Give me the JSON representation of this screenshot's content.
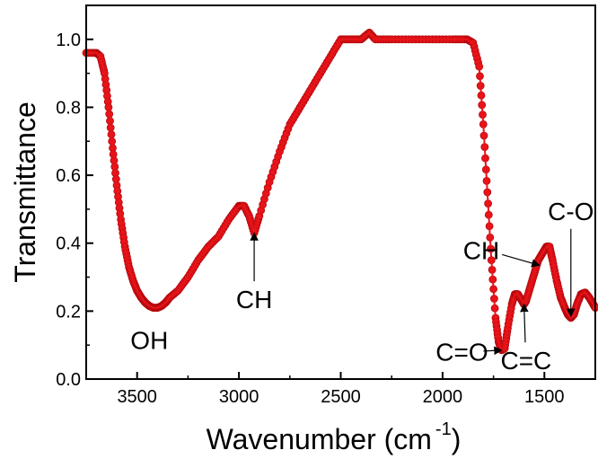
{
  "chart_data": {
    "type": "scatter",
    "xlabel": "Wavenumber (cm",
    "xlabel_superscript": "-1",
    "xlabel_suffix": ")",
    "ylabel": "Transmittance",
    "xlim": [
      3750,
      1250
    ],
    "ylim": [
      0.0,
      1.1
    ],
    "x_reversed": true,
    "x_ticks": [
      3500,
      3000,
      2500,
      2000,
      1500
    ],
    "y_ticks": [
      0.0,
      0.2,
      0.4,
      0.6,
      0.8,
      1.0
    ],
    "x_tick_labels": [
      "3500",
      "3000",
      "2500",
      "2000",
      "1500"
    ],
    "y_tick_labels": [
      "0.0",
      "0.2",
      "0.4",
      "0.6",
      "0.8",
      "1.0"
    ],
    "grid": false,
    "legend": "none",
    "series": [
      {
        "color": "#e8141a",
        "marker": "circle",
        "points": [
          [
            3750,
            0.96
          ],
          [
            3700,
            0.96
          ],
          [
            3680,
            0.95
          ],
          [
            3660,
            0.9
          ],
          [
            3640,
            0.8
          ],
          [
            3620,
            0.68
          ],
          [
            3600,
            0.57
          ],
          [
            3580,
            0.47
          ],
          [
            3560,
            0.39
          ],
          [
            3540,
            0.33
          ],
          [
            3520,
            0.29
          ],
          [
            3500,
            0.26
          ],
          [
            3480,
            0.24
          ],
          [
            3460,
            0.225
          ],
          [
            3440,
            0.215
          ],
          [
            3420,
            0.21
          ],
          [
            3400,
            0.21
          ],
          [
            3380,
            0.215
          ],
          [
            3360,
            0.225
          ],
          [
            3340,
            0.24
          ],
          [
            3300,
            0.26
          ],
          [
            3250,
            0.3
          ],
          [
            3200,
            0.35
          ],
          [
            3150,
            0.39
          ],
          [
            3100,
            0.42
          ],
          [
            3050,
            0.47
          ],
          [
            3000,
            0.51
          ],
          [
            2975,
            0.51
          ],
          [
            2950,
            0.48
          ],
          [
            2925,
            0.43
          ],
          [
            2900,
            0.48
          ],
          [
            2850,
            0.58
          ],
          [
            2800,
            0.67
          ],
          [
            2750,
            0.75
          ],
          [
            2700,
            0.8
          ],
          [
            2650,
            0.85
          ],
          [
            2600,
            0.9
          ],
          [
            2550,
            0.95
          ],
          [
            2500,
            1.0
          ],
          [
            2450,
            1.0
          ],
          [
            2400,
            1.0
          ],
          [
            2360,
            1.02
          ],
          [
            2330,
            1.0
          ],
          [
            2250,
            1.0
          ],
          [
            2150,
            1.0
          ],
          [
            2050,
            1.0
          ],
          [
            1950,
            1.0
          ],
          [
            1880,
            1.0
          ],
          [
            1850,
            0.99
          ],
          [
            1820,
            0.92
          ],
          [
            1800,
            0.75
          ],
          [
            1780,
            0.55
          ],
          [
            1760,
            0.35
          ],
          [
            1740,
            0.18
          ],
          [
            1725,
            0.11
          ],
          [
            1710,
            0.085
          ],
          [
            1695,
            0.09
          ],
          [
            1680,
            0.15
          ],
          [
            1660,
            0.22
          ],
          [
            1645,
            0.25
          ],
          [
            1630,
            0.25
          ],
          [
            1610,
            0.23
          ],
          [
            1600,
            0.22
          ],
          [
            1590,
            0.23
          ],
          [
            1570,
            0.27
          ],
          [
            1550,
            0.31
          ],
          [
            1530,
            0.35
          ],
          [
            1510,
            0.37
          ],
          [
            1490,
            0.39
          ],
          [
            1475,
            0.39
          ],
          [
            1460,
            0.35
          ],
          [
            1440,
            0.29
          ],
          [
            1420,
            0.24
          ],
          [
            1400,
            0.21
          ],
          [
            1385,
            0.19
          ],
          [
            1370,
            0.18
          ],
          [
            1355,
            0.19
          ],
          [
            1340,
            0.22
          ],
          [
            1320,
            0.25
          ],
          [
            1300,
            0.255
          ],
          [
            1280,
            0.24
          ],
          [
            1260,
            0.22
          ],
          [
            1250,
            0.21
          ]
        ]
      }
    ],
    "annotations": [
      {
        "text": "OH",
        "x": 3410,
        "y": 0.21,
        "arrow": false,
        "text_at": [
          3440,
          0.115
        ]
      },
      {
        "text": "CH",
        "x": 2925,
        "y": 0.43,
        "arrow": true,
        "text_at": [
          2925,
          0.235
        ]
      },
      {
        "text": "C=O",
        "x": 1710,
        "y": 0.085,
        "arrow": true,
        "text_at": [
          1905,
          0.08
        ]
      },
      {
        "text": "C=C",
        "x": 1600,
        "y": 0.22,
        "arrow": true,
        "text_at": [
          1590,
          0.055
        ]
      },
      {
        "text": "CH",
        "x": 1525,
        "y": 0.335,
        "arrow": true,
        "text_at": [
          1810,
          0.38
        ]
      },
      {
        "text": "C-O",
        "x": 1370,
        "y": 0.185,
        "arrow": true,
        "text_at": [
          1370,
          0.495
        ]
      }
    ]
  }
}
